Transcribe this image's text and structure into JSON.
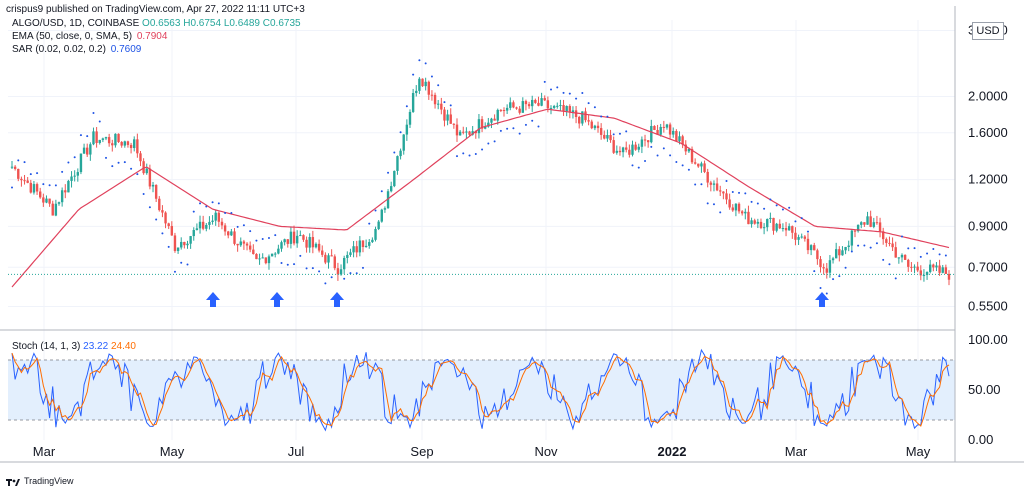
{
  "header": {
    "author_line": "crispus9 published on TradingView.com, Apr 27, 2022 11:11 UTC+3",
    "symbol": "ALGO/USD, 1D, COINBASE",
    "ohlc": {
      "O": "0.6563",
      "H": "0.6754",
      "L": "0.6489",
      "C": "0.6735"
    },
    "ema_label": "EMA (50, close, 0, SMA, 5)",
    "ema_value": "0.7904",
    "sar_label": "SAR (0.02, 0.02, 0.2)",
    "sar_value": "0.7609",
    "currency": "USD"
  },
  "colors": {
    "up": "#26a69a",
    "down": "#ef5350",
    "ema": "#e0415c",
    "sar": "#1e53e5",
    "stoch_k": "#2962ff",
    "stoch_d": "#ff6d00",
    "arrow": "#2962ff",
    "band": "#e3effd"
  },
  "footer": {
    "brand": "TradingView"
  },
  "chart_data": [
    {
      "type": "candlestick",
      "title": "ALGO/USD, 1D, COINBASE",
      "scale": "log",
      "ylim": [
        0.5,
        3.2
      ],
      "y_ticks": [
        "0.5500",
        "0.7000",
        "0.9000",
        "1.2000",
        "1.6000",
        "2.0000",
        "3.0000"
      ],
      "x_ticks": [
        "Mar",
        "May",
        "Jul",
        "Sep",
        "Nov",
        "2022",
        "Mar",
        "May"
      ],
      "horizontal_line": 0.67,
      "series": [
        {
          "name": "Price",
          "points": [
            {
              "x": "Feb",
              "y": 1.3
            },
            {
              "x": "Mar",
              "y": 1.0
            },
            {
              "x": "Apr",
              "y": 1.55
            },
            {
              "x": "May",
              "y": 1.5
            },
            {
              "x": "May",
              "y": 0.8
            },
            {
              "x": "Jun",
              "y": 0.95
            },
            {
              "x": "Jun",
              "y": 0.72
            },
            {
              "x": "Jul",
              "y": 0.86
            },
            {
              "x": "Jul",
              "y": 0.7
            },
            {
              "x": "Aug",
              "y": 0.9
            },
            {
              "x": "Sep",
              "y": 2.3
            },
            {
              "x": "Sep",
              "y": 1.55
            },
            {
              "x": "Oct",
              "y": 1.85
            },
            {
              "x": "Nov",
              "y": 1.9
            },
            {
              "x": "Nov",
              "y": 1.75
            },
            {
              "x": "Dec",
              "y": 1.4
            },
            {
              "x": "Dec",
              "y": 1.7
            },
            {
              "x": "2022",
              "y": 1.25
            },
            {
              "x": "Jan",
              "y": 0.95
            },
            {
              "x": "Feb",
              "y": 0.9
            },
            {
              "x": "Mar",
              "y": 0.7
            },
            {
              "x": "Apr",
              "y": 0.95
            },
            {
              "x": "Apr",
              "y": 0.7
            },
            {
              "x": "May",
              "y": 0.6735
            }
          ]
        },
        {
          "name": "EMA",
          "points": [
            {
              "x": "Feb",
              "y": 0.62
            },
            {
              "x": "Mar",
              "y": 1.0
            },
            {
              "x": "May",
              "y": 1.3
            },
            {
              "x": "Jun",
              "y": 1.0
            },
            {
              "x": "Jul",
              "y": 0.9
            },
            {
              "x": "Aug",
              "y": 0.88
            },
            {
              "x": "Sep",
              "y": 1.2
            },
            {
              "x": "Oct",
              "y": 1.65
            },
            {
              "x": "Nov",
              "y": 1.85
            },
            {
              "x": "Dec",
              "y": 1.75
            },
            {
              "x": "2022",
              "y": 1.5
            },
            {
              "x": "Feb",
              "y": 1.15
            },
            {
              "x": "Mar",
              "y": 0.9
            },
            {
              "x": "Apr",
              "y": 0.87
            },
            {
              "x": "May",
              "y": 0.79
            }
          ]
        }
      ],
      "arrows": [
        "May",
        "Jun",
        "Jul",
        "Mar"
      ]
    },
    {
      "type": "line",
      "title": "Stoch (14, 1, 3)",
      "values_shown": {
        "k": "23.22",
        "d": "24.40"
      },
      "ylim": [
        0,
        100
      ],
      "y_ticks": [
        "0.00",
        "50.00",
        "100.00"
      ],
      "bands": [
        20,
        80
      ],
      "x_ticks": [
        "Mar",
        "May",
        "Jul",
        "Sep",
        "Nov",
        "2022",
        "Mar",
        "May"
      ]
    }
  ]
}
